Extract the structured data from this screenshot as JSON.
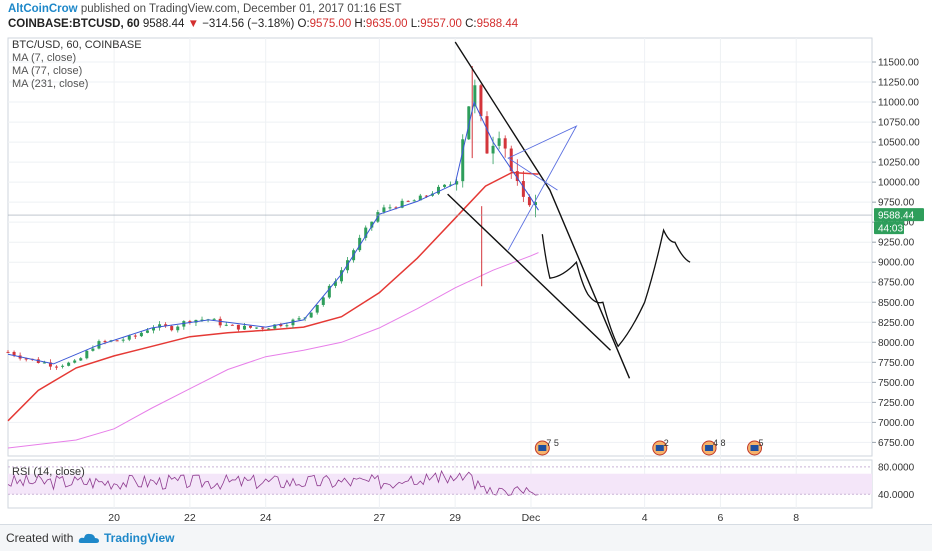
{
  "header": {
    "author": "AltCoinCrow",
    "published_text": " published on TradingView.com, December 01, 2017 01:16 EST",
    "symbol": "COINBASE:BTCUSD, 60",
    "last": "9588.44",
    "change_arrow": "▼",
    "change": "−314.56 (−3.18%)",
    "open_label": "O:",
    "open": "9575.00",
    "high_label": "H:",
    "high": "9635.00",
    "low_label": "L:",
    "low": "9557.00",
    "close_label": "C:",
    "close": "9588.44"
  },
  "legend": {
    "symbol_line": "BTC/USD, 60, COINBASE",
    "ma_fast": "MA (7, close)",
    "ma_mid": "MA (77, close)",
    "ma_slow": "MA (231, close)"
  },
  "rsi": {
    "label": "RSI (14, close)",
    "ticks": [
      "80.0000",
      "40.0000"
    ],
    "tick_values": [
      80,
      40
    ],
    "band": [
      40,
      70
    ]
  },
  "price_badge": "9588.44",
  "countdown_badge": "44:03",
  "event_markers": [
    "7 5",
    "2",
    "4 8",
    "5"
  ],
  "footer": {
    "created_with": "Created with",
    "brand": "TradingView"
  },
  "colors": {
    "up": "#2e9e5b",
    "down": "#d3353b",
    "ma_fast": "#3a57d6",
    "ma_mid": "#e53935",
    "ma_slow": "#e77fe9",
    "rsi": "#8e3b8f",
    "badge_price": "#2e9e5b",
    "badge_timer": "#2e9e5b"
  },
  "chart_data": {
    "type": "candlestick",
    "y_ticks": [
      11500,
      11250,
      11000,
      10750,
      10500,
      10250,
      10000,
      9750,
      9500,
      9250,
      9000,
      8750,
      8500,
      8250,
      8000,
      7750,
      7500,
      7250,
      7000,
      6750
    ],
    "y_tick_labels": [
      "11500.00",
      "11250.00",
      "11000.00",
      "10750.00",
      "10500.00",
      "10250.00",
      "10000.00",
      "9750.00",
      "9500.00",
      "9250.00",
      "9000.00",
      "8750.00",
      "8500.00",
      "8250.00",
      "8000.00",
      "7750.00",
      "7500.00",
      "7250.00",
      "7000.00",
      "6750.00"
    ],
    "ylim": [
      6580,
      11800
    ],
    "x_labels": [
      "20",
      "22",
      "24",
      "27",
      "29",
      "Dec",
      "4",
      "6",
      "8"
    ],
    "x_label_days": [
      20,
      22,
      24,
      27,
      29,
      31,
      34,
      36,
      38
    ],
    "xlim": [
      17.2,
      40
    ],
    "last_price": 9588.44,
    "close_series": [
      {
        "day": 17.2,
        "close": 7880
      },
      {
        "day": 17.8,
        "close": 7780
      },
      {
        "day": 18.4,
        "close": 7720
      },
      {
        "day": 19.0,
        "close": 7740
      },
      {
        "day": 19.5,
        "close": 7980
      },
      {
        "day": 20.0,
        "close": 8020
      },
      {
        "day": 20.5,
        "close": 8060
      },
      {
        "day": 21.0,
        "close": 8200
      },
      {
        "day": 21.5,
        "close": 8180
      },
      {
        "day": 22.0,
        "close": 8280
      },
      {
        "day": 22.5,
        "close": 8290
      },
      {
        "day": 23.0,
        "close": 8200
      },
      {
        "day": 23.5,
        "close": 8180
      },
      {
        "day": 24.0,
        "close": 8190
      },
      {
        "day": 24.5,
        "close": 8240
      },
      {
        "day": 25.0,
        "close": 8300
      },
      {
        "day": 25.5,
        "close": 8550
      },
      {
        "day": 26.0,
        "close": 8900
      },
      {
        "day": 26.5,
        "close": 9300
      },
      {
        "day": 27.0,
        "close": 9650
      },
      {
        "day": 27.5,
        "close": 9720
      },
      {
        "day": 28.0,
        "close": 9780
      },
      {
        "day": 28.5,
        "close": 9900
      },
      {
        "day": 29.0,
        "close": 10000
      },
      {
        "day": 29.3,
        "close": 10900
      },
      {
        "day": 29.5,
        "close": 11200
      },
      {
        "day": 29.8,
        "close": 10400
      },
      {
        "day": 30.2,
        "close": 10700
      },
      {
        "day": 30.5,
        "close": 10100
      },
      {
        "day": 30.8,
        "close": 9700
      },
      {
        "day": 31.0,
        "close": 9850
      },
      {
        "day": 31.2,
        "close": 9588
      }
    ],
    "ma_series": [
      {
        "name": "MA (7, close)",
        "points": [
          [
            17.2,
            7850
          ],
          [
            18.4,
            7730
          ],
          [
            19.5,
            7950
          ],
          [
            21.0,
            8180
          ],
          [
            22.5,
            8280
          ],
          [
            24.0,
            8190
          ],
          [
            25.0,
            8280
          ],
          [
            26.0,
            8850
          ],
          [
            27.0,
            9600
          ],
          [
            28.0,
            9760
          ],
          [
            29.0,
            9980
          ],
          [
            29.5,
            11000
          ],
          [
            30.0,
            10500
          ],
          [
            30.5,
            10150
          ],
          [
            31.0,
            9800
          ],
          [
            31.2,
            9650
          ]
        ]
      },
      {
        "name": "MA (77, close)",
        "points": [
          [
            17.2,
            7020
          ],
          [
            18.0,
            7400
          ],
          [
            19.0,
            7680
          ],
          [
            20.0,
            7830
          ],
          [
            21.0,
            7950
          ],
          [
            22.0,
            8070
          ],
          [
            23.0,
            8120
          ],
          [
            24.0,
            8150
          ],
          [
            25.0,
            8190
          ],
          [
            26.0,
            8320
          ],
          [
            27.0,
            8620
          ],
          [
            28.0,
            9050
          ],
          [
            29.0,
            9550
          ],
          [
            29.8,
            9950
          ],
          [
            30.5,
            10120
          ],
          [
            31.2,
            10100
          ]
        ]
      },
      {
        "name": "MA (231, close)",
        "points": [
          [
            17.2,
            6680
          ],
          [
            19.0,
            6780
          ],
          [
            20.0,
            6920
          ],
          [
            21.0,
            7180
          ],
          [
            22.0,
            7420
          ],
          [
            23.0,
            7660
          ],
          [
            24.0,
            7820
          ],
          [
            25.0,
            7900
          ],
          [
            26.0,
            8000
          ],
          [
            27.0,
            8180
          ],
          [
            28.0,
            8420
          ],
          [
            29.0,
            8680
          ],
          [
            30.0,
            8900
          ],
          [
            31.0,
            9080
          ],
          [
            31.2,
            9120
          ]
        ]
      }
    ],
    "annotations": {
      "channel_upper": [
        [
          29.0,
          11750
        ],
        [
          31.5,
          9900
        ],
        [
          33.6,
          7550
        ]
      ],
      "channel_lower": [
        [
          28.8,
          9850
        ],
        [
          33.1,
          7900
        ]
      ],
      "blue_triangle": [
        [
          30.4,
          10200
        ],
        [
          32.2,
          10300
        ]
      ],
      "projection": [
        [
          31.3,
          9350
        ],
        [
          31.5,
          8800
        ],
        [
          32.2,
          9000
        ],
        [
          32.5,
          8600
        ],
        [
          32.9,
          8500
        ],
        [
          33.3,
          7950
        ],
        [
          34.0,
          8500
        ],
        [
          34.5,
          9400
        ],
        [
          34.8,
          9250
        ],
        [
          35.2,
          9000
        ]
      ]
    }
  }
}
